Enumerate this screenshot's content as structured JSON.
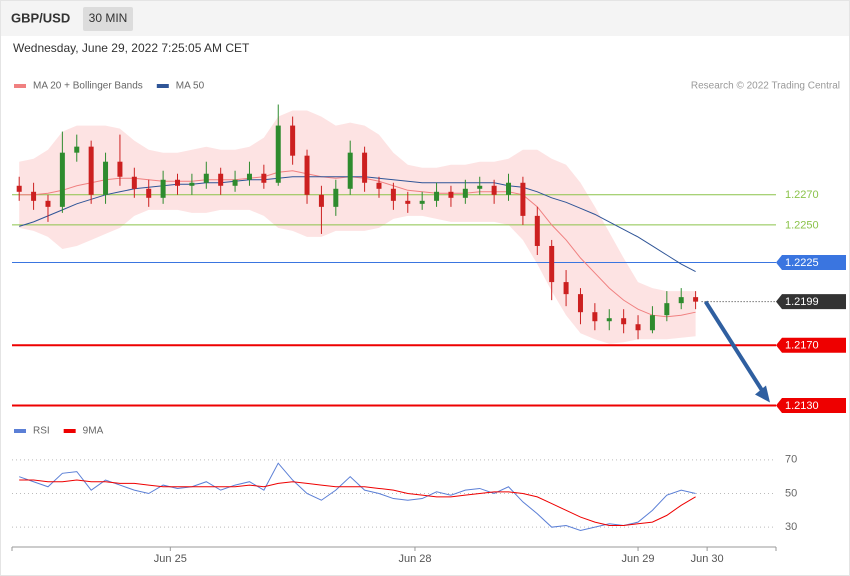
{
  "header": {
    "symbol": "GBP/USD",
    "interval": "30 MIN",
    "timestamp": "Wednesday, June 29, 2022 7:25:05 AM CET",
    "credit": "Research © 2022 Trading Central"
  },
  "chart_data": [
    {
      "type": "candlestick",
      "ylim": [
        1.2127,
        1.2333
      ],
      "up_color": "#2e8b2e",
      "down_color": "#cc2020",
      "open": [
        1.2276,
        1.2272,
        1.2266,
        1.2262,
        1.2298,
        1.2302,
        1.227,
        1.2292,
        1.2282,
        1.2274,
        1.2268,
        1.228,
        1.2276,
        1.2278,
        1.2284,
        1.2276,
        1.228,
        1.2284,
        1.2278,
        1.2316,
        1.2296,
        1.227,
        1.2262,
        1.2274,
        1.2298,
        1.2278,
        1.2274,
        1.2266,
        1.2264,
        1.2266,
        1.2272,
        1.2268,
        1.2274,
        1.2276,
        1.227,
        1.2278,
        1.2256,
        1.2236,
        1.2212,
        1.2204,
        1.2192,
        1.2186,
        1.2188,
        1.2184,
        1.218,
        1.219,
        1.2198,
        1.2202
      ],
      "high": [
        1.2282,
        1.2278,
        1.227,
        1.2312,
        1.231,
        1.2306,
        1.2298,
        1.231,
        1.2288,
        1.228,
        1.2286,
        1.2284,
        1.2284,
        1.2292,
        1.2288,
        1.2286,
        1.2292,
        1.229,
        1.233,
        1.2322,
        1.23,
        1.2276,
        1.228,
        1.2306,
        1.2302,
        1.2282,
        1.2278,
        1.2272,
        1.2272,
        1.2278,
        1.2276,
        1.228,
        1.2282,
        1.228,
        1.2284,
        1.2282,
        1.2262,
        1.224,
        1.222,
        1.2208,
        1.2198,
        1.2194,
        1.2194,
        1.219,
        1.2196,
        1.2206,
        1.2208,
        1.2206
      ],
      "low": [
        1.2266,
        1.226,
        1.2252,
        1.2258,
        1.2292,
        1.2264,
        1.2264,
        1.2276,
        1.2268,
        1.2262,
        1.2264,
        1.227,
        1.227,
        1.2274,
        1.227,
        1.2272,
        1.2276,
        1.2274,
        1.2276,
        1.229,
        1.2264,
        1.2244,
        1.2256,
        1.227,
        1.2272,
        1.2268,
        1.226,
        1.2258,
        1.226,
        1.2262,
        1.2262,
        1.2264,
        1.227,
        1.2264,
        1.2266,
        1.225,
        1.223,
        1.22,
        1.2196,
        1.2184,
        1.218,
        1.218,
        1.2178,
        1.2174,
        1.2178,
        1.2186,
        1.2194,
        1.2194
      ],
      "close": [
        1.2272,
        1.2266,
        1.2262,
        1.2298,
        1.2302,
        1.227,
        1.2292,
        1.2282,
        1.2274,
        1.2268,
        1.228,
        1.2276,
        1.2278,
        1.2284,
        1.2276,
        1.228,
        1.2284,
        1.2278,
        1.2316,
        1.2296,
        1.227,
        1.2262,
        1.2274,
        1.2298,
        1.2278,
        1.2274,
        1.2266,
        1.2264,
        1.2266,
        1.2272,
        1.2268,
        1.2274,
        1.2276,
        1.227,
        1.2278,
        1.2256,
        1.2236,
        1.2212,
        1.2204,
        1.2192,
        1.2186,
        1.2188,
        1.2184,
        1.218,
        1.219,
        1.2198,
        1.2202,
        1.2199
      ],
      "series": [
        {
          "name": "MA 20 + Bollinger Bands",
          "color": "#f08080",
          "values": [
            1.227,
            1.227,
            1.2271,
            1.2273,
            1.2276,
            1.2278,
            1.228,
            1.2281,
            1.2281,
            1.228,
            1.2279,
            1.2279,
            1.2279,
            1.228,
            1.228,
            1.228,
            1.2281,
            1.2282,
            1.2285,
            1.2286,
            1.2284,
            1.2282,
            1.2281,
            1.2282,
            1.2281,
            1.2279,
            1.2276,
            1.2273,
            1.2272,
            1.2271,
            1.2271,
            1.2271,
            1.2272,
            1.2272,
            1.2272,
            1.227,
            1.2262,
            1.225,
            1.224,
            1.2228,
            1.2218,
            1.2208,
            1.22,
            1.2194,
            1.219,
            1.2189,
            1.219,
            1.2192
          ],
          "band": {
            "color": "#fde3e3",
            "upper": [
              1.2292,
              1.2294,
              1.23,
              1.2312,
              1.2316,
              1.2316,
              1.2316,
              1.2314,
              1.2306,
              1.23,
              1.2298,
              1.2298,
              1.23,
              1.2302,
              1.23,
              1.23,
              1.2302,
              1.2308,
              1.2322,
              1.2326,
              1.2326,
              1.2322,
              1.2316,
              1.2318,
              1.2316,
              1.231,
              1.2298,
              1.229,
              1.2288,
              1.2288,
              1.229,
              1.229,
              1.2292,
              1.2292,
              1.2294,
              1.23,
              1.23,
              1.2294,
              1.229,
              1.2278,
              1.2262,
              1.2245,
              1.2228,
              1.2212,
              1.2208,
              1.2206,
              1.2206,
              1.2206
            ],
            "lower": [
              1.2248,
              1.2246,
              1.2242,
              1.2234,
              1.2236,
              1.224,
              1.2244,
              1.2248,
              1.2256,
              1.226,
              1.226,
              1.226,
              1.2258,
              1.2258,
              1.226,
              1.226,
              1.226,
              1.2256,
              1.2248,
              1.2246,
              1.2242,
              1.2242,
              1.2246,
              1.2246,
              1.2246,
              1.2248,
              1.2254,
              1.2256,
              1.2256,
              1.2254,
              1.2252,
              1.2252,
              1.2252,
              1.2252,
              1.225,
              1.224,
              1.2224,
              1.2206,
              1.219,
              1.2178,
              1.2174,
              1.2171,
              1.2172,
              1.2174,
              1.2174,
              1.2174,
              1.2175,
              1.2176
            ]
          }
        },
        {
          "name": "MA 50",
          "color": "#2f5597",
          "values": [
            1.2249,
            1.2252,
            1.2256,
            1.226,
            1.2264,
            1.2267,
            1.227,
            1.2272,
            1.2274,
            1.2275,
            1.2276,
            1.2277,
            1.2277,
            1.2278,
            1.2278,
            1.2279,
            1.228,
            1.228,
            1.2281,
            1.2282,
            1.2282,
            1.2282,
            1.2282,
            1.2282,
            1.2282,
            1.2281,
            1.228,
            1.2279,
            1.2278,
            1.2278,
            1.2278,
            1.2278,
            1.2278,
            1.2278,
            1.2276,
            1.2275,
            1.2272,
            1.2268,
            1.2265,
            1.2261,
            1.2257,
            1.2252,
            1.2247,
            1.2242,
            1.2236,
            1.223,
            1.2224,
            1.2219
          ]
        }
      ],
      "levels": [
        {
          "value": 1.227,
          "label": "1.2270",
          "color": "#8bc34a",
          "boxed": false,
          "line": "thin"
        },
        {
          "value": 1.225,
          "label": "1.2250",
          "color": "#8bc34a",
          "boxed": false,
          "line": "thin"
        },
        {
          "value": 1.2225,
          "label": "1.2225",
          "color": "#3a75e0",
          "boxed": true,
          "line": "thin"
        },
        {
          "value": 1.2199,
          "label": "1.2199",
          "color": "#333333",
          "boxed": true,
          "line": "dotted"
        },
        {
          "value": 1.217,
          "label": "1.2170",
          "color": "#ee0000",
          "boxed": true,
          "line": "thick"
        },
        {
          "value": 1.213,
          "label": "1.2130",
          "color": "#ee0000",
          "boxed": true,
          "line": "thick"
        }
      ]
    },
    {
      "type": "line",
      "ylim": [
        20,
        80
      ],
      "yticks": [
        30,
        50,
        70
      ],
      "xlim": [
        0,
        48.5
      ],
      "xticks": [
        {
          "value": 11,
          "label": "Jun 25"
        },
        {
          "value": 28,
          "label": "Jun 28"
        },
        {
          "value": 43.5,
          "label": "Jun 29"
        },
        {
          "value": 48.3,
          "label": "Jun 30"
        }
      ],
      "series": [
        {
          "name": "RSI",
          "color": "#5b7fd6",
          "values": [
            60,
            57,
            54,
            62,
            63,
            52,
            58,
            55,
            52,
            50,
            55,
            53,
            54,
            57,
            52,
            55,
            57,
            52,
            68,
            58,
            50,
            46,
            52,
            60,
            52,
            50,
            47,
            46,
            47,
            51,
            49,
            52,
            53,
            50,
            54,
            45,
            38,
            30,
            31,
            28,
            30,
            32,
            31,
            33,
            40,
            49,
            52,
            50
          ]
        },
        {
          "name": "9MA",
          "color": "#ee0000",
          "values": [
            58,
            58,
            57,
            57,
            58,
            57,
            57,
            56,
            56,
            55,
            54,
            54,
            54,
            54,
            54,
            54,
            55,
            54,
            56,
            57,
            56,
            55,
            54,
            54,
            54,
            53,
            52,
            50,
            49,
            48,
            48,
            49,
            50,
            51,
            51,
            50,
            48,
            44,
            40,
            36,
            33,
            31,
            31,
            32,
            33,
            37,
            43,
            48
          ]
        }
      ]
    }
  ]
}
